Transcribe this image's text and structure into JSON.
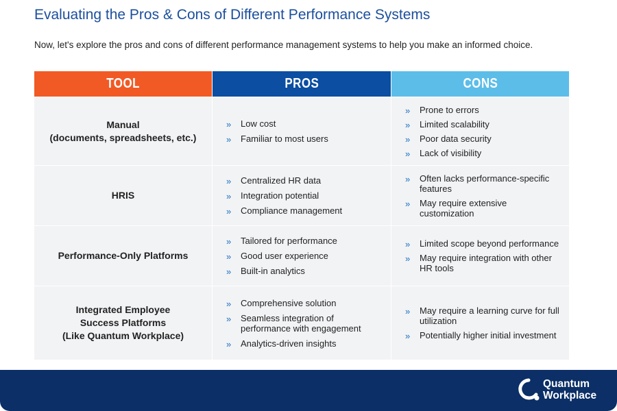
{
  "header": {
    "title": "Evaluating the Pros & Cons of Different Performance Systems",
    "subtitle": "Now, let's explore the pros and cons of different performance management systems to help you make an informed choice."
  },
  "table": {
    "columns": [
      "TOOL",
      "PROS",
      "CONS"
    ],
    "rows": [
      {
        "tool": [
          "Manual",
          "(documents, spreadsheets, etc.)"
        ],
        "pros": [
          "Low cost",
          "Familiar to most users"
        ],
        "cons": [
          "Prone to errors",
          "Limited scalability",
          "Poor data security",
          "Lack of visibility"
        ]
      },
      {
        "tool": [
          "HRIS"
        ],
        "pros": [
          "Centralized HR data",
          "Integration potential",
          "Compliance management"
        ],
        "cons": [
          "Often lacks performance-specific features",
          "May require extensive customization"
        ]
      },
      {
        "tool": [
          "Performance-Only Platforms"
        ],
        "pros": [
          "Tailored for performance",
          "Good user experience",
          "Built-in analytics"
        ],
        "cons": [
          "Limited scope beyond performance",
          "May require integration with other HR tools"
        ]
      },
      {
        "tool": [
          "Integrated Employee",
          "Success Platforms",
          "(Like Quantum Workplace)"
        ],
        "pros": [
          "Comprehensive solution",
          "Seamless integration of performance with engagement",
          "Analytics-driven insights"
        ],
        "cons": [
          "May require a learning curve for full utilization",
          "Potentially higher initial investment"
        ]
      }
    ]
  },
  "footer": {
    "brand": [
      "Quantum",
      "Workplace"
    ]
  }
}
